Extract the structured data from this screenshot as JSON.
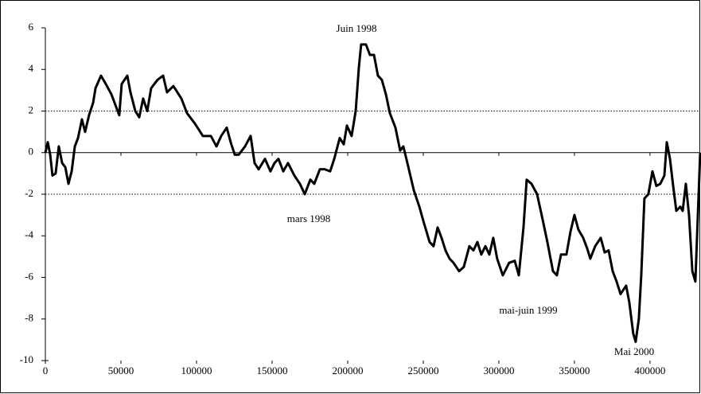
{
  "chart_data": {
    "type": "line",
    "annotations": [
      "Juin 1998",
      "mars 1998",
      "mai-juin 1999",
      "Mai 2000"
    ],
    "x": [
      0,
      1600,
      3200,
      4700,
      6800,
      8900,
      11100,
      13200,
      15300,
      17400,
      19500,
      21600,
      24200,
      26300,
      28900,
      31600,
      33200,
      36800,
      40000,
      43700,
      48900,
      50500,
      54200,
      56300,
      59500,
      62100,
      64700,
      67400,
      70000,
      74200,
      77900,
      80500,
      84700,
      90000,
      93700,
      98900,
      104200,
      109500,
      113200,
      116300,
      120000,
      122600,
      125300,
      127900,
      132100,
      135800,
      138400,
      141100,
      145300,
      148900,
      151600,
      154200,
      157400,
      160500,
      164700,
      168400,
      171600,
      175300,
      177900,
      181600,
      184700,
      188400,
      191100,
      194700,
      197400,
      199500,
      202600,
      205300,
      207400,
      208900,
      212100,
      214700,
      217400,
      220000,
      222600,
      225300,
      227900,
      231600,
      234700,
      236800,
      239500,
      243700,
      247400,
      250500,
      254200,
      256800,
      259500,
      262100,
      264700,
      267400,
      270000,
      273700,
      276800,
      280500,
      283200,
      285800,
      288400,
      291100,
      293700,
      296300,
      298900,
      302600,
      306800,
      310500,
      313200,
      316300,
      318400,
      321600,
      325300,
      328900,
      332100,
      335800,
      338400,
      341100,
      344700,
      347400,
      350000,
      352600,
      355800,
      358400,
      360500,
      363700,
      367400,
      370000,
      372600,
      375300,
      377900,
      380500,
      384200,
      386300,
      388900,
      390500,
      392600,
      394200,
      396300,
      398900,
      401600,
      404200,
      406800,
      409500,
      411100,
      413200,
      415300,
      417400,
      420000,
      421600,
      423700,
      425800,
      428000,
      430000,
      433200
    ],
    "series": [
      {
        "color": "#000000",
        "values": [
          0,
          0.5,
          -0.1,
          -1.1,
          -1.0,
          0.3,
          -0.5,
          -0.7,
          -1.5,
          -0.9,
          0.3,
          0.7,
          1.6,
          1.0,
          1.8,
          2.4,
          3.1,
          3.7,
          3.3,
          2.8,
          1.8,
          3.3,
          3.7,
          2.9,
          2.0,
          1.7,
          2.6,
          2.0,
          3.1,
          3.5,
          3.7,
          2.9,
          3.2,
          2.6,
          1.9,
          1.4,
          0.8,
          0.8,
          0.3,
          0.8,
          1.2,
          0.5,
          -0.1,
          -0.1,
          0.3,
          0.8,
          -0.5,
          -0.8,
          -0.3,
          -0.9,
          -0.5,
          -0.3,
          -0.9,
          -0.5,
          -1.1,
          -1.5,
          -2.0,
          -1.3,
          -1.5,
          -0.8,
          -0.8,
          -0.9,
          -0.3,
          0.7,
          0.4,
          1.3,
          0.8,
          2.0,
          4.1,
          5.2,
          5.2,
          4.7,
          4.7,
          3.7,
          3.5,
          2.8,
          1.9,
          1.2,
          0.1,
          0.3,
          -0.5,
          -1.8,
          -2.6,
          -3.4,
          -4.3,
          -4.5,
          -3.6,
          -4.1,
          -4.7,
          -5.1,
          -5.3,
          -5.7,
          -5.5,
          -4.5,
          -4.7,
          -4.3,
          -4.9,
          -4.5,
          -4.9,
          -4.1,
          -5.1,
          -5.9,
          -5.3,
          -5.2,
          -5.9,
          -3.6,
          -1.3,
          -1.5,
          -2.0,
          -3.2,
          -4.3,
          -5.7,
          -5.9,
          -4.9,
          -4.9,
          -3.8,
          -3.0,
          -3.7,
          -4.1,
          -4.6,
          -5.1,
          -4.5,
          -4.1,
          -4.8,
          -4.7,
          -5.7,
          -6.2,
          -6.8,
          -6.4,
          -7.2,
          -8.7,
          -9.1,
          -8.0,
          -5.9,
          -2.2,
          -2.0,
          -0.9,
          -1.6,
          -1.5,
          -1.1,
          0.5,
          -0.3,
          -1.6,
          -2.8,
          -2.6,
          -2.8,
          -1.5,
          -3.0,
          -5.7,
          -6.2,
          0
        ]
      }
    ],
    "xlim": [
      0,
      433200
    ],
    "xticks": [
      0,
      50000,
      100000,
      150000,
      200000,
      250000,
      300000,
      350000,
      400000
    ],
    "ylim": [
      -10,
      6
    ],
    "yticks": [
      -10,
      -8,
      -6,
      -4,
      -2,
      0,
      2,
      4,
      6
    ],
    "hlines": [
      2,
      -2
    ]
  }
}
